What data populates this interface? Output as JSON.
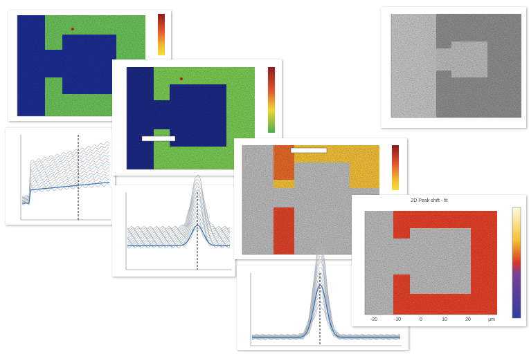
{
  "right_map": {
    "title": "2D Peak shift - fit",
    "x_ticks": [
      "-20",
      "-10",
      "0",
      "10",
      "20",
      "µm"
    ]
  }
}
